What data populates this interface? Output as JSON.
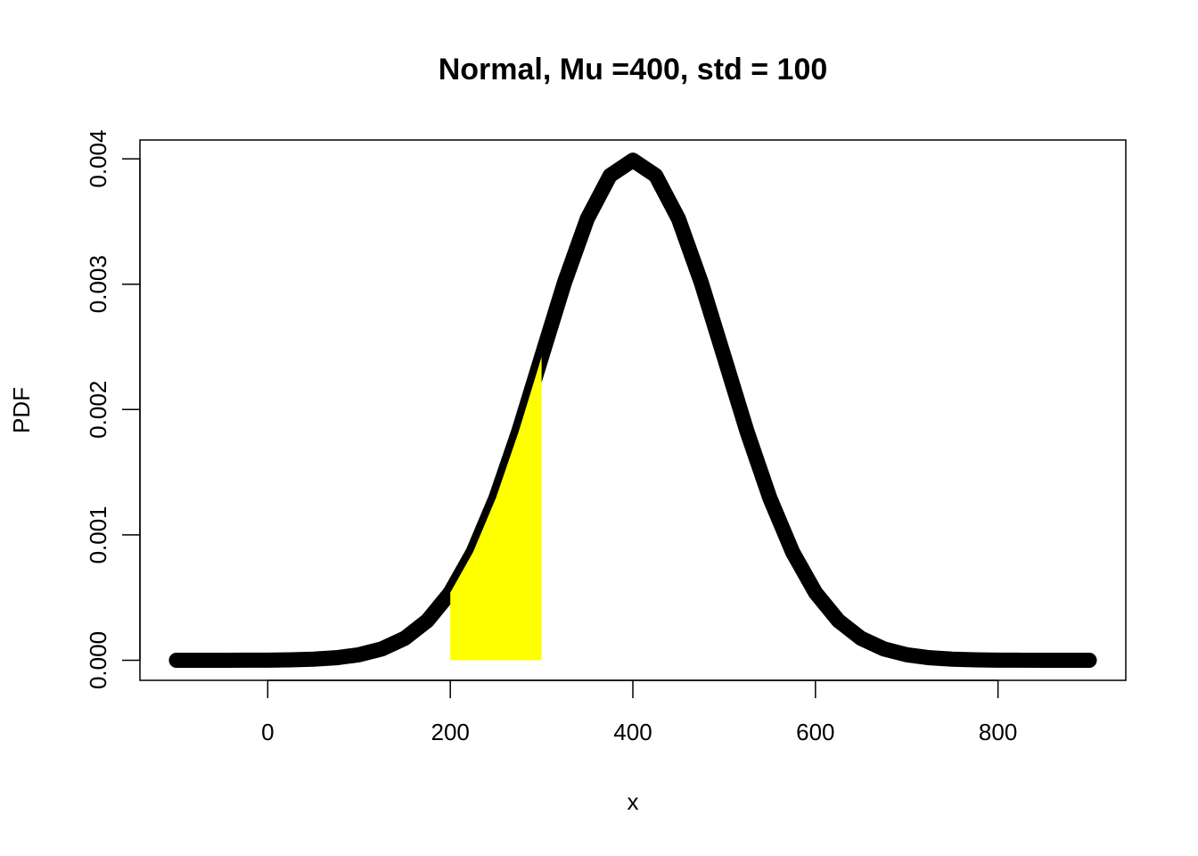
{
  "chart_data": {
    "type": "line",
    "title": "Normal, Mu =400, std = 100",
    "x_label": "x",
    "y_label": "PDF",
    "x": [
      -100,
      -75,
      -50,
      -25,
      0,
      25,
      50,
      75,
      100,
      125,
      150,
      175,
      200,
      225,
      250,
      275,
      300,
      325,
      350,
      375,
      400,
      425,
      450,
      475,
      500,
      525,
      550,
      575,
      600,
      625,
      650,
      675,
      700,
      725,
      750,
      775,
      800,
      825,
      850,
      875,
      900
    ],
    "values": [
      1.5e-08,
      5e-08,
      1.6e-07,
      4.7e-07,
      1.34e-06,
      3.53e-06,
      8.73e-06,
      2.03e-05,
      4.43e-05,
      9.09e-05,
      0.000175,
      0.000317,
      0.00054,
      0.000863,
      0.001295,
      0.001826,
      0.00242,
      0.003011,
      0.003521,
      0.003867,
      0.003989,
      0.003867,
      0.003521,
      0.003011,
      0.00242,
      0.001826,
      0.001295,
      0.000863,
      0.00054,
      0.000317,
      0.000175,
      9.09e-05,
      4.43e-05,
      2.03e-05,
      8.73e-06,
      3.53e-06,
      1.34e-06,
      4.7e-07,
      1.6e-07,
      5e-08,
      1.5e-08
    ],
    "color": "#000000",
    "shaded_region": {
      "x": [
        200,
        225,
        250,
        275,
        300
      ],
      "values": [
        0.00054,
        0.000863,
        0.001295,
        0.001826,
        0.00242
      ],
      "color": "#ffff00"
    },
    "xlim": [
      -140,
      940
    ],
    "ylim": [
      -0.00016,
      0.00415
    ],
    "xticks": [
      0,
      200,
      400,
      600,
      800
    ],
    "yticks": [
      {
        "value": 0,
        "label": "0.000"
      },
      {
        "value": 0.001,
        "label": "0.001"
      },
      {
        "value": 0.002,
        "label": "0.002"
      },
      {
        "value": 0.003,
        "label": "0.003"
      },
      {
        "value": 0.004,
        "label": "0.004"
      }
    ]
  }
}
